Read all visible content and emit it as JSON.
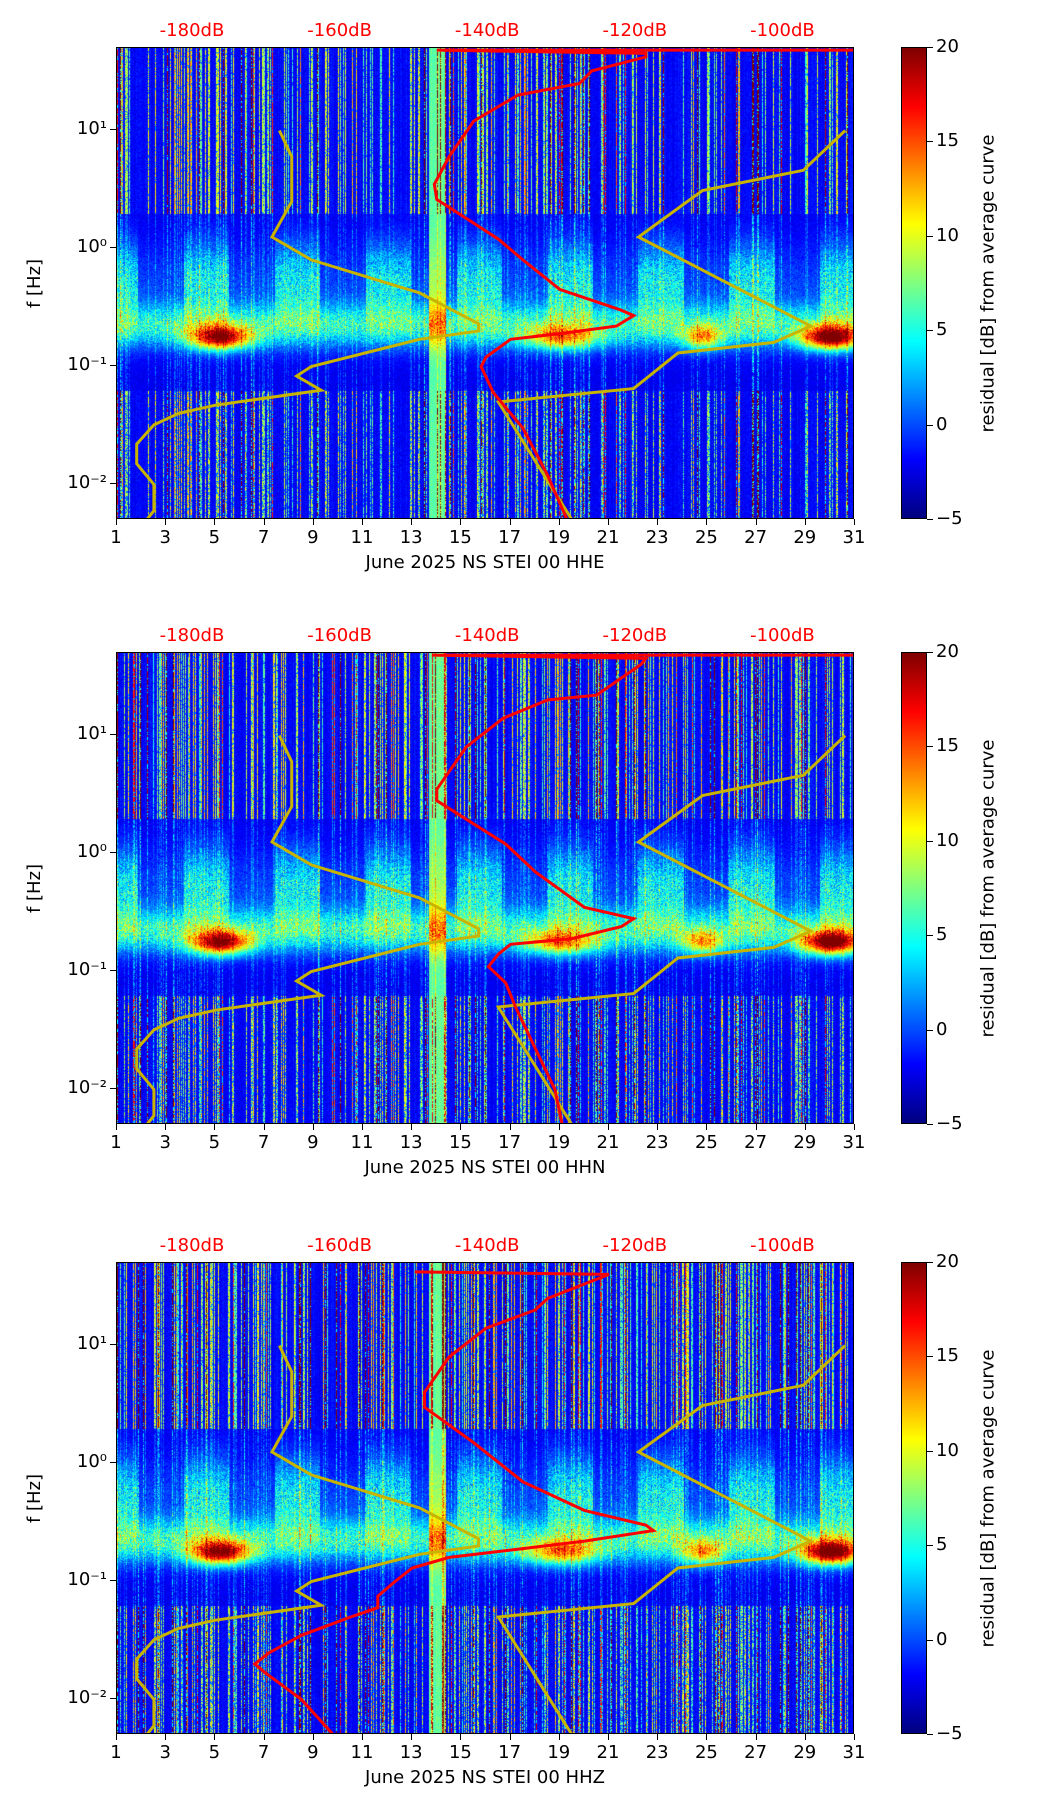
{
  "chart_data": {
    "type": "heatmap",
    "x_ticks": [
      1,
      3,
      5,
      7,
      9,
      11,
      13,
      15,
      17,
      19,
      21,
      23,
      25,
      27,
      29,
      31
    ],
    "xlim": [
      1,
      31
    ],
    "ylim": [
      0.005,
      50
    ],
    "y_scale": "log",
    "y_ticks": [
      {
        "value": 0.01,
        "label": "10⁻²"
      },
      {
        "value": 0.1,
        "label": "10⁻¹"
      },
      {
        "value": 1,
        "label": "10⁰"
      },
      {
        "value": 10,
        "label": "10¹"
      }
    ],
    "ylabel": "f [Hz]",
    "top_axis": {
      "ticks": [
        -180,
        -160,
        -140,
        -120,
        -100
      ],
      "labels": [
        "-180dB",
        "-160dB",
        "-140dB",
        "-120dB",
        "-100dB"
      ],
      "range_db": [
        -190.3,
        -90.3
      ],
      "color": "#ff0000"
    },
    "colorbar": {
      "label": "residual [dB] from average curve",
      "range": [
        -5,
        20
      ],
      "ticks": [
        "−5",
        "0",
        "5",
        "10",
        "15",
        "20"
      ],
      "colormap": "jet"
    },
    "reference_curve": {
      "name": "model curve",
      "color": "#c8b400",
      "segments": [
        [
          [
            2.2,
            0.005
          ],
          [
            2.5,
            0.006
          ],
          [
            2.5,
            0.01
          ],
          [
            1.8,
            0.015
          ],
          [
            1.8,
            0.022
          ],
          [
            2.5,
            0.032
          ],
          [
            3.5,
            0.04
          ],
          [
            5,
            0.047
          ],
          [
            9.3,
            0.063
          ],
          [
            8.3,
            0.083
          ],
          [
            8.9,
            0.1
          ],
          [
            13.3,
            0.17
          ],
          [
            15.7,
            0.2
          ],
          [
            15.7,
            0.23
          ],
          [
            13.3,
            0.42
          ],
          [
            8.9,
            0.8
          ],
          [
            7.3,
            1.25
          ],
          [
            8.1,
            2.5
          ],
          [
            8.1,
            6
          ],
          [
            7.6,
            10
          ]
        ],
        [
          [
            19.5,
            0.005
          ],
          [
            16.5,
            0.05
          ],
          [
            22,
            0.065
          ],
          [
            23.8,
            0.13
          ],
          [
            27.7,
            0.16
          ],
          [
            29.2,
            0.22
          ],
          [
            22.2,
            1.25
          ],
          [
            24.8,
            3.1
          ],
          [
            28.9,
            4.6
          ],
          [
            30.6,
            10
          ]
        ]
      ]
    },
    "panels": [
      {
        "xlabel": "June 2025 NS STEI 00 HHE",
        "component": "HHE",
        "average_curve": [
          [
            19.3,
            0.005
          ],
          [
            18.5,
            0.012
          ],
          [
            17.5,
            0.03
          ],
          [
            16.3,
            0.06
          ],
          [
            15.8,
            0.1
          ],
          [
            16,
            0.12
          ],
          [
            17,
            0.17
          ],
          [
            19,
            0.19
          ],
          [
            21.3,
            0.22
          ],
          [
            22,
            0.27
          ],
          [
            21.5,
            0.3
          ],
          [
            19,
            0.45
          ],
          [
            17.5,
            0.8
          ],
          [
            16.5,
            1.2
          ],
          [
            15.2,
            1.8
          ],
          [
            14,
            2.6
          ],
          [
            13.9,
            3.5
          ],
          [
            14.5,
            6
          ],
          [
            15.5,
            12
          ],
          [
            17.3,
            20
          ],
          [
            19.8,
            25
          ],
          [
            20.3,
            32
          ],
          [
            22.5,
            42
          ],
          [
            22.5,
            45
          ],
          [
            14,
            48
          ],
          [
            31,
            48
          ]
        ]
      },
      {
        "xlabel": "June 2025 NS STEI 00 HHN",
        "component": "HHN",
        "average_curve": [
          [
            19.1,
            0.005
          ],
          [
            18.8,
            0.01
          ],
          [
            17.2,
            0.05
          ],
          [
            16.8,
            0.08
          ],
          [
            16.1,
            0.11
          ],
          [
            16.5,
            0.14
          ],
          [
            17,
            0.17
          ],
          [
            19.5,
            0.19
          ],
          [
            21.5,
            0.24
          ],
          [
            22,
            0.28
          ],
          [
            20,
            0.35
          ],
          [
            18,
            0.7
          ],
          [
            16.8,
            1.2
          ],
          [
            14,
            2.8
          ],
          [
            14,
            3.5
          ],
          [
            15.2,
            8
          ],
          [
            16.7,
            14
          ],
          [
            18.5,
            20
          ],
          [
            20.5,
            22
          ],
          [
            22.3,
            40
          ],
          [
            22.5,
            45
          ],
          [
            13.8,
            48
          ],
          [
            31,
            48
          ]
        ]
      },
      {
        "xlabel": "June 2025 NS STEI 00 HHZ",
        "component": "HHZ",
        "average_curve": [
          [
            9.8,
            0.005
          ],
          [
            8.5,
            0.01
          ],
          [
            7,
            0.017
          ],
          [
            6.6,
            0.02
          ],
          [
            7.2,
            0.025
          ],
          [
            8.5,
            0.035
          ],
          [
            10.5,
            0.05
          ],
          [
            11.6,
            0.06
          ],
          [
            11.6,
            0.075
          ],
          [
            12.3,
            0.1
          ],
          [
            13,
            0.13
          ],
          [
            14.5,
            0.16
          ],
          [
            17.5,
            0.19
          ],
          [
            20,
            0.22
          ],
          [
            22.8,
            0.27
          ],
          [
            22.5,
            0.3
          ],
          [
            20,
            0.4
          ],
          [
            17.5,
            0.7
          ],
          [
            15.5,
            1.5
          ],
          [
            13.5,
            3
          ],
          [
            13.5,
            4
          ],
          [
            14.5,
            8
          ],
          [
            16,
            14
          ],
          [
            18,
            20
          ],
          [
            18.5,
            25
          ],
          [
            21,
            40
          ],
          [
            13.1,
            42
          ]
        ]
      }
    ]
  }
}
